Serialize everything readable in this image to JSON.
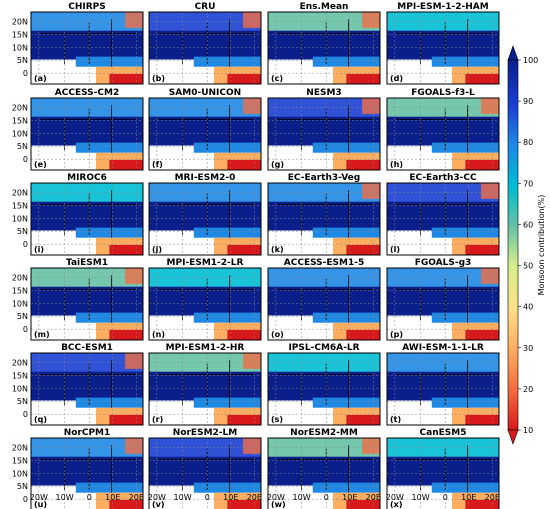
{
  "chart_data": {
    "type": "heatmap",
    "colorbar": {
      "label": "Monsoon contribution(%)",
      "ticks": [
        10,
        20,
        30,
        40,
        50,
        60,
        70,
        80,
        90,
        100
      ],
      "range": [
        10,
        100
      ],
      "colormap": [
        "#d7191c",
        "#f46d43",
        "#fdae61",
        "#fee08b",
        "#d9ef8b",
        "#66c2a5",
        "#00bcd4",
        "#1e88e5",
        "#1a3fd1",
        "#0b1f8c"
      ]
    },
    "y_tick_labels": [
      "20N",
      "15N",
      "10N",
      "5N",
      "0"
    ],
    "x_tick_labels": [
      "20W",
      "10W",
      "0",
      "10E",
      "20E"
    ],
    "panels": [
      {
        "tag": "(a)",
        "title": "CHIRPS"
      },
      {
        "tag": "(b)",
        "title": "CRU"
      },
      {
        "tag": "(c)",
        "title": "Ens.Mean"
      },
      {
        "tag": "(d)",
        "title": "MPI-ESM-1-2-HAM"
      },
      {
        "tag": "(e)",
        "title": "ACCESS-CM2"
      },
      {
        "tag": "(f)",
        "title": "SAM0-UNICON"
      },
      {
        "tag": "(g)",
        "title": "NESM3"
      },
      {
        "tag": "(h)",
        "title": "FGOALS-f3-L"
      },
      {
        "tag": "(i)",
        "title": "MIROC6"
      },
      {
        "tag": "(j)",
        "title": "MRI-ESM2-0"
      },
      {
        "tag": "(k)",
        "title": "EC-Earth3-Veg"
      },
      {
        "tag": "(l)",
        "title": "EC-Earth3-CC"
      },
      {
        "tag": "(m)",
        "title": "TaiESM1"
      },
      {
        "tag": "(n)",
        "title": "MPI-ESM1-2-LR"
      },
      {
        "tag": "(o)",
        "title": "ACCESS-ESM1-5"
      },
      {
        "tag": "(p)",
        "title": "FGOALS-g3"
      },
      {
        "tag": "(q)",
        "title": "BCC-ESM1"
      },
      {
        "tag": "(r)",
        "title": "MPI-ESM1-2-HR"
      },
      {
        "tag": "(s)",
        "title": "IPSL-CM6A-LR"
      },
      {
        "tag": "(t)",
        "title": "AWI-ESM-1-1-LR"
      },
      {
        "tag": "(u)",
        "title": "NorCPM1"
      },
      {
        "tag": "(v)",
        "title": "NorESM2-LM"
      },
      {
        "tag": "(w)",
        "title": "NorESM2-MM"
      },
      {
        "tag": "(x)",
        "title": "CanESM5"
      }
    ]
  }
}
